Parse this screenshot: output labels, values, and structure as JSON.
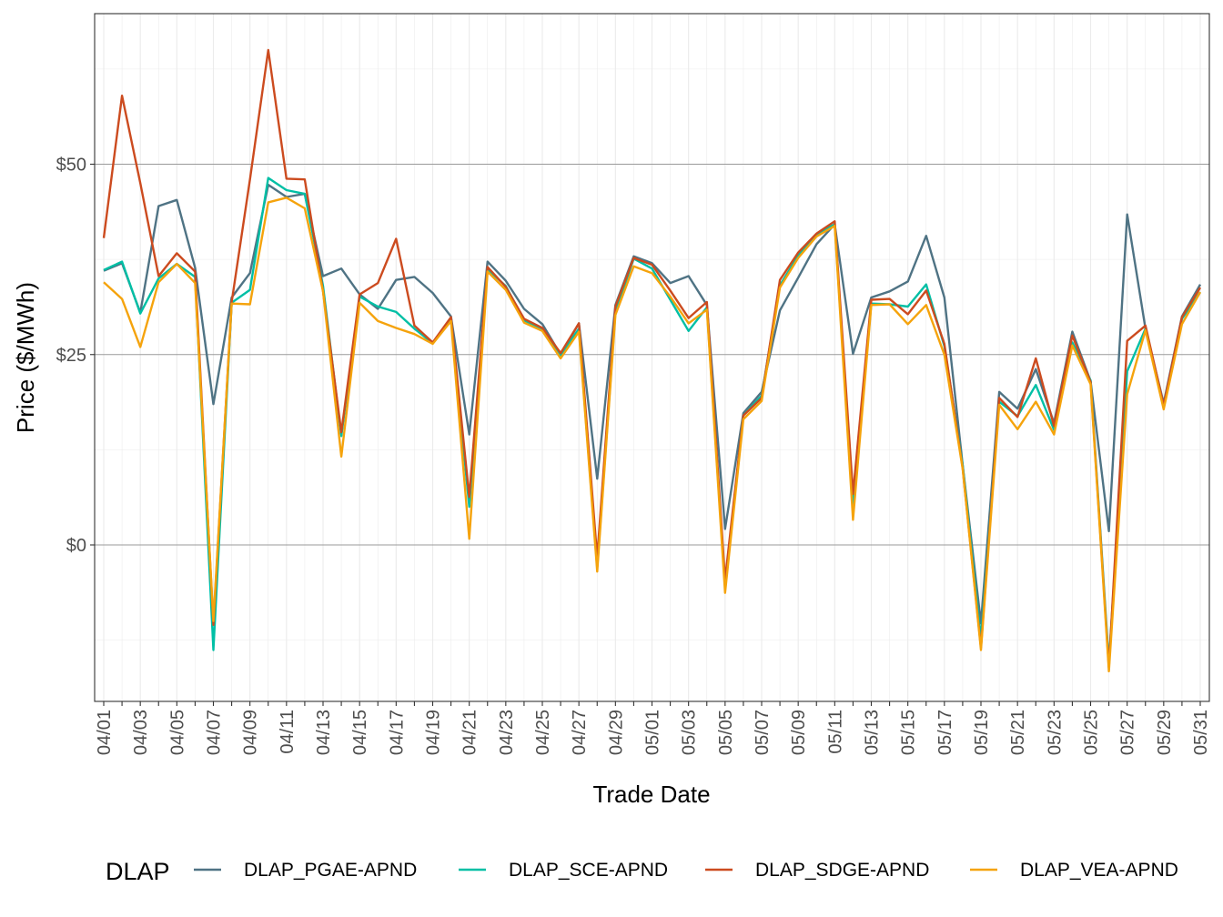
{
  "chart_data": {
    "type": "line",
    "title": "",
    "xlabel": "Trade Date",
    "ylabel": "Price ($/MWh)",
    "ylim": [
      -20,
      70
    ],
    "y_ticks": [
      {
        "value": 0,
        "label": "$0"
      },
      {
        "value": 25,
        "label": "$25"
      },
      {
        "value": 50,
        "label": "$50"
      }
    ],
    "x_tick_labels": [
      "04/01",
      "04/03",
      "04/05",
      "04/07",
      "04/09",
      "04/11",
      "04/13",
      "04/15",
      "04/17",
      "04/19",
      "04/21",
      "04/23",
      "04/25",
      "04/27",
      "04/29",
      "05/01",
      "05/03",
      "05/05",
      "05/07",
      "05/09",
      "05/11",
      "05/13",
      "05/15",
      "05/17",
      "05/19",
      "05/21",
      "05/23",
      "05/25",
      "05/27",
      "05/29",
      "05/31"
    ],
    "x": [
      "04/01",
      "04/02",
      "04/03",
      "04/04",
      "04/05",
      "04/06",
      "04/07",
      "04/08",
      "04/09",
      "04/10",
      "04/11",
      "04/12",
      "04/13",
      "04/14",
      "04/15",
      "04/16",
      "04/17",
      "04/18",
      "04/19",
      "04/20",
      "04/21",
      "04/22",
      "04/23",
      "04/24",
      "04/25",
      "04/26",
      "04/27",
      "04/28",
      "04/29",
      "04/30",
      "05/01",
      "05/02",
      "05/03",
      "05/04",
      "05/05",
      "05/06",
      "05/07",
      "05/08",
      "05/09",
      "05/10",
      "05/11",
      "05/12",
      "05/13",
      "05/14",
      "05/15",
      "05/16",
      "05/17",
      "05/18",
      "05/19",
      "05/20",
      "05/21",
      "05/22",
      "05/23",
      "05/24",
      "05/25",
      "05/26",
      "05/27",
      "05/28",
      "05/29",
      "05/30",
      "05/31"
    ],
    "grid": true,
    "legend": {
      "title": "DLAP",
      "position": "bottom"
    },
    "series": [
      {
        "name": "DLAP_PGAE-APND",
        "color": "#4f7384",
        "values": [
          36,
          37,
          30.5,
          44.5,
          45.3,
          36.4,
          18.5,
          32.5,
          35.7,
          47.3,
          45.7,
          46.1,
          35.3,
          36.3,
          32.9,
          31,
          34.8,
          35.2,
          33.1,
          30,
          14.5,
          37.2,
          34.7,
          31,
          29,
          25,
          29.1,
          8.7,
          31.5,
          37.9,
          37,
          34.4,
          35.3,
          31.5,
          2.1,
          17.3,
          20.1,
          30.8,
          35.1,
          39.5,
          42.1,
          25.1,
          32.5,
          33.3,
          34.6,
          40.6,
          32.5,
          10.5,
          -10.3,
          20.1,
          17.9,
          23.1,
          16,
          28,
          21.5,
          1.8,
          43.4,
          28.4,
          18.6,
          30,
          34.2
        ]
      },
      {
        "name": "DLAP_SCE-APND",
        "color": "#00bfa5",
        "values": [
          36.1,
          37.2,
          30.4,
          35,
          36.9,
          35.2,
          -13.8,
          31.8,
          33.5,
          48.2,
          46.6,
          46.1,
          34,
          14.3,
          32.6,
          31.3,
          30.6,
          28.4,
          26.5,
          29.6,
          5,
          36.2,
          34,
          29.5,
          28.4,
          24.9,
          28.4,
          -3,
          30.6,
          37.6,
          36.3,
          32.2,
          28.1,
          31.2,
          -5.5,
          17,
          19.6,
          34.1,
          38,
          40.8,
          42.1,
          4.9,
          31.7,
          31.6,
          31.3,
          34.2,
          26.1,
          10.5,
          -12.3,
          18.8,
          16.9,
          21,
          15.1,
          26.6,
          21.6,
          -15.5,
          22.8,
          28.4,
          18.1,
          29.7,
          33.2
        ]
      },
      {
        "name": "DLAP_SDGE-APND",
        "color": "#cc4b1f",
        "values": [
          40.3,
          59,
          47.5,
          35.3,
          38.3,
          35.9,
          -10.5,
          31.9,
          48,
          65,
          48.1,
          48,
          33.3,
          14.8,
          32.9,
          34.4,
          40.2,
          28.8,
          26.6,
          29.9,
          6.3,
          36.5,
          33.9,
          29.7,
          28.5,
          25.2,
          29.1,
          -1.7,
          31.3,
          37.7,
          36.8,
          33.4,
          29.8,
          31.9,
          -4.6,
          17,
          19.3,
          34.8,
          38.4,
          40.9,
          42.5,
          6.7,
          32.2,
          32.3,
          30.3,
          33.4,
          26.4,
          10.1,
          -13.5,
          19.3,
          16.8,
          24.5,
          15.6,
          27.5,
          21.4,
          -16.1,
          26.8,
          28.8,
          18.3,
          29.9,
          33.8
        ]
      },
      {
        "name": "DLAP_VEA-APND",
        "color": "#f5a30c",
        "values": [
          34.5,
          32.3,
          26,
          34.5,
          36.9,
          34.4,
          -10,
          31.7,
          31.6,
          45,
          45.6,
          44.2,
          33.3,
          11.6,
          31.8,
          29.4,
          28.5,
          27.7,
          26.4,
          29.4,
          0.8,
          35.9,
          33.5,
          29.2,
          28.1,
          24.5,
          28,
          -3.5,
          30.2,
          36.6,
          35.7,
          32.6,
          29.1,
          30.9,
          -6.3,
          16.5,
          18.9,
          33.8,
          37.7,
          40.5,
          41.9,
          3.3,
          31.5,
          31.6,
          29,
          31.5,
          25,
          10,
          -13.8,
          18.4,
          15.2,
          18.8,
          14.5,
          26.2,
          21.1,
          -16.6,
          19.8,
          28.2,
          17.8,
          29,
          33.2
        ]
      }
    ]
  }
}
